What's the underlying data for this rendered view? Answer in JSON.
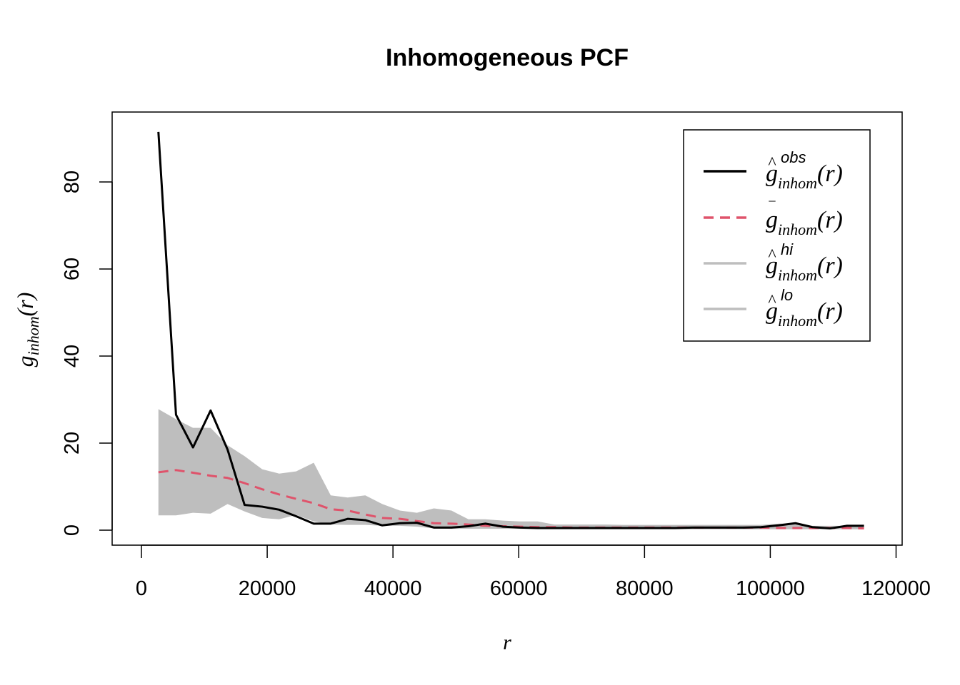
{
  "chart_data": {
    "type": "line",
    "title": "Inhomogeneous PCF",
    "xlabel": "r",
    "ylabel": {
      "base": "g",
      "sub": "inhom",
      "arg": "(r)"
    },
    "xlim": [
      0,
      120000
    ],
    "ylim": [
      0,
      90
    ],
    "x_ticks": [
      0,
      20000,
      40000,
      60000,
      80000,
      100000,
      120000
    ],
    "y_ticks": [
      0,
      20,
      40,
      60,
      80
    ],
    "x": [
      2700,
      5500,
      8200,
      11000,
      13700,
      16400,
      19200,
      21900,
      24600,
      27400,
      30100,
      32800,
      35600,
      38300,
      41100,
      43800,
      46500,
      49300,
      52000,
      54700,
      57500,
      60200,
      63000,
      65700,
      68400,
      71200,
      73900,
      76600,
      79400,
      82100,
      84800,
      87600,
      90300,
      93000,
      95800,
      98500,
      101300,
      104000,
      106700,
      109500,
      112200,
      114900
    ],
    "series": [
      {
        "name": "obs",
        "color": "#000000",
        "dash": "solid",
        "values": [
          91.5,
          26.5,
          19.0,
          27.5,
          18.5,
          5.8,
          5.4,
          4.7,
          3.2,
          1.5,
          1.5,
          2.6,
          2.3,
          1.1,
          1.6,
          1.7,
          0.6,
          0.6,
          0.9,
          1.5,
          0.8,
          0.6,
          0.5,
          0.5,
          0.5,
          0.5,
          0.5,
          0.5,
          0.5,
          0.5,
          0.5,
          0.6,
          0.6,
          0.6,
          0.6,
          0.7,
          1.1,
          1.6,
          0.7,
          0.4,
          1.0,
          1.0
        ]
      },
      {
        "name": "mean",
        "color": "#DF536B",
        "dash": "dashed",
        "values": [
          13.3,
          13.8,
          13.2,
          12.5,
          12.0,
          10.8,
          9.4,
          8.2,
          7.2,
          6.2,
          4.8,
          4.5,
          3.6,
          2.8,
          2.6,
          2.1,
          1.6,
          1.5,
          1.3,
          1.0,
          0.9,
          0.8,
          0.7,
          0.7,
          0.6,
          0.6,
          0.6,
          0.6,
          0.6,
          0.6,
          0.6,
          0.6,
          0.6,
          0.6,
          0.6,
          0.6,
          0.5,
          0.5,
          0.5,
          0.5,
          0.5,
          0.4
        ]
      },
      {
        "name": "hi",
        "color": "#BEBEBE",
        "dash": "solid",
        "values": [
          27.8,
          25.5,
          23.5,
          23.5,
          19.5,
          17.0,
          14.0,
          13.0,
          13.5,
          15.5,
          8.0,
          7.5,
          8.0,
          6.0,
          4.5,
          4.0,
          5.0,
          4.5,
          2.5,
          2.5,
          2.2,
          2.0,
          2.0,
          1.3,
          1.3,
          1.3,
          1.3,
          1.2,
          1.2,
          1.2,
          1.2,
          1.2,
          1.2,
          1.2,
          1.2,
          1.2,
          1.5,
          1.5,
          1.0,
          1.0,
          1.0,
          1.0
        ]
      },
      {
        "name": "lo",
        "color": "#BEBEBE",
        "dash": "solid",
        "values": [
          3.4,
          3.4,
          4.0,
          3.8,
          6.0,
          4.3,
          2.8,
          2.5,
          3.5,
          2.0,
          1.3,
          1.2,
          1.2,
          1.0,
          1.0,
          0.8,
          0.4,
          0.3,
          0.3,
          0.3,
          0.3,
          0.3,
          0.2,
          0.2,
          0.2,
          0.2,
          0.2,
          0.2,
          0.2,
          0.2,
          0.2,
          0.2,
          0.2,
          0.2,
          0.2,
          0.2,
          0.2,
          0.2,
          0.2,
          0.2,
          0.2,
          0.2
        ]
      }
    ],
    "legend": {
      "position": "top-right",
      "entries": [
        {
          "base": "g",
          "accent": "^",
          "sup": "obs",
          "sub": "inhom",
          "arg": "(r)",
          "color": "#000000",
          "dash": "solid"
        },
        {
          "base": "g",
          "accent": "‾",
          "sup": "",
          "sub": "inhom",
          "arg": "(r)",
          "color": "#DF536B",
          "dash": "dashed"
        },
        {
          "base": "g",
          "accent": "^",
          "sup": "hi",
          "sub": "inhom",
          "arg": "(r)",
          "color": "#BEBEBE",
          "dash": "solid"
        },
        {
          "base": "g",
          "accent": "^",
          "sup": "lo",
          "sub": "inhom",
          "arg": "(r)",
          "color": "#BEBEBE",
          "dash": "solid"
        }
      ]
    },
    "envelope_fill": "#BEBEBE",
    "grid": false
  }
}
